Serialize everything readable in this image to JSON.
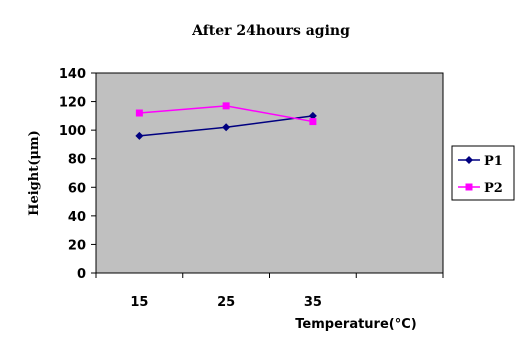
{
  "chart_data": {
    "type": "line",
    "title": "After 24hours  aging",
    "xlabel": "Temperature(°C)",
    "ylabel": "Height(μm)",
    "x": [
      15,
      25,
      35
    ],
    "x_ticks": [
      "15",
      "25",
      "35"
    ],
    "x_categories": 4,
    "ylim": [
      0,
      140
    ],
    "y_ticks": [
      0,
      20,
      40,
      60,
      80,
      100,
      120,
      140
    ],
    "grid": false,
    "legend_position": "right",
    "plot_background": "#c0c0c0",
    "series": [
      {
        "name": "P1",
        "values": [
          96,
          102,
          110
        ],
        "color": "#000080",
        "marker": "diamond"
      },
      {
        "name": "P2",
        "values": [
          112,
          117,
          106
        ],
        "color": "#ff00ff",
        "marker": "square"
      }
    ]
  }
}
